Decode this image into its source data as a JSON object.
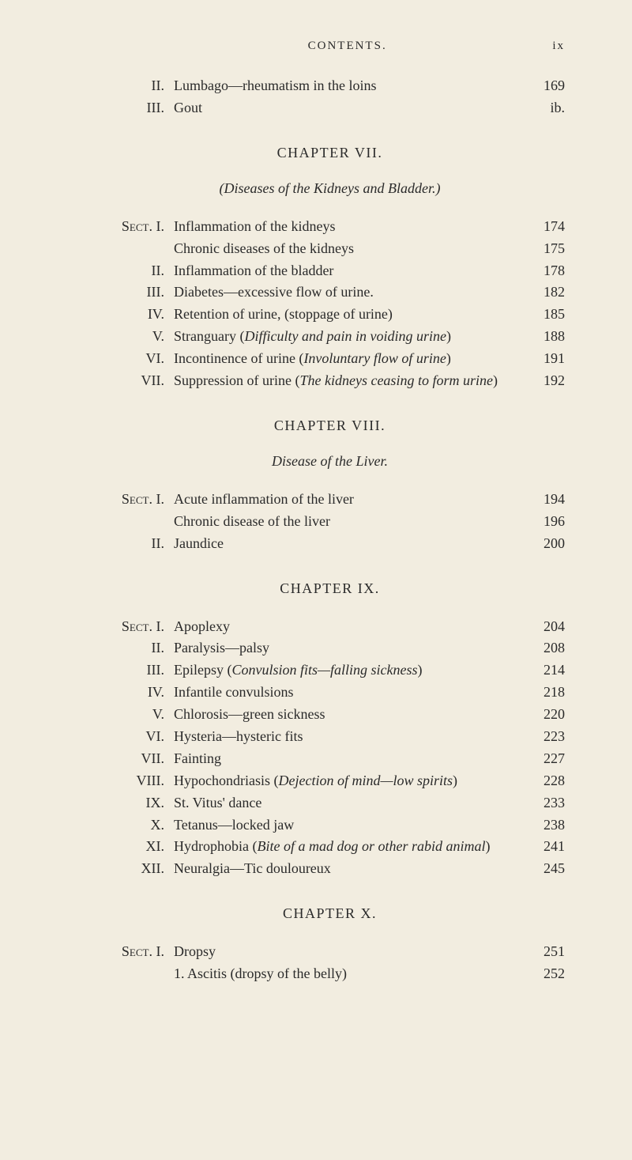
{
  "page_header": {
    "title": "CONTENTS.",
    "page_num": "ix"
  },
  "top_entries": [
    {
      "label": "II.",
      "title": "Lumbago—rheumatism in the loins",
      "page": "169"
    },
    {
      "label": "III.",
      "title": "Gout",
      "page": "ib."
    }
  ],
  "chapter7": {
    "heading": "CHAPTER VII.",
    "subtitle": "(Diseases of the Kidneys and Bladder.)",
    "entries": [
      {
        "label": "Sect. I.",
        "title": "Inflammation of the kidneys",
        "page": "174"
      },
      {
        "label": "",
        "title": "Chronic diseases of the kidneys",
        "page": "175",
        "sub": true
      },
      {
        "label": "II.",
        "title": "Inflammation of the bladder",
        "page": "178"
      },
      {
        "label": "III.",
        "title": "Diabetes—excessive flow of urine.",
        "page": "182"
      },
      {
        "label": "IV.",
        "title": "Retention of urine, (stoppage of urine)",
        "page": "185"
      },
      {
        "label": "V.",
        "title_html": "Stranguary (<i>Difficulty and pain in voiding urine</i>)",
        "page": "188"
      },
      {
        "label": "VI.",
        "title_html": "Incontinence of urine (<i>Involuntary flow of urine</i>)",
        "page": "191"
      },
      {
        "label": "VII.",
        "title_html": "Suppression of urine (<i>The kidneys ceasing to form urine</i>)",
        "page": "192",
        "wrap": true
      }
    ]
  },
  "chapter8": {
    "heading": "CHAPTER VIII.",
    "subtitle": "Disease of the Liver.",
    "entries": [
      {
        "label": "Sect. I.",
        "title": "Acute inflammation of the liver",
        "page": "194"
      },
      {
        "label": "",
        "title": "Chronic disease of the liver",
        "page": "196",
        "sub": true
      },
      {
        "label": "II.",
        "title": "Jaundice",
        "page": "200"
      }
    ]
  },
  "chapter9": {
    "heading": "CHAPTER IX.",
    "entries": [
      {
        "label": "Sect. I.",
        "title": "Apoplexy",
        "page": "204"
      },
      {
        "label": "II.",
        "title": "Paralysis—palsy",
        "page": "208"
      },
      {
        "label": "III.",
        "title_html": "Epilepsy (<i>Convulsion fits—falling sickness</i>)",
        "page": "214"
      },
      {
        "label": "IV.",
        "title": "Infantile convulsions",
        "page": "218"
      },
      {
        "label": "V.",
        "title": "Chlorosis—green sickness",
        "page": "220"
      },
      {
        "label": "VI.",
        "title": "Hysteria—hysteric fits",
        "page": "223"
      },
      {
        "label": "VII.",
        "title": "Fainting",
        "page": "227"
      },
      {
        "label": "VIII.",
        "title_html": "Hypochondriasis (<i>Dejection of mind—low spirits</i>)",
        "page": "228"
      },
      {
        "label": "IX.",
        "title": "St. Vitus' dance",
        "page": "233"
      },
      {
        "label": "X.",
        "title": "Tetanus—locked jaw",
        "page": "238"
      },
      {
        "label": "XI.",
        "title_html": "Hydrophobia (<i>Bite of a mad dog or other rabid animal</i>)",
        "page": "241",
        "wrap": true
      },
      {
        "label": "XII.",
        "title": "Neuralgia—Tic douloureux",
        "page": "245"
      }
    ]
  },
  "chapter10": {
    "heading": "CHAPTER X.",
    "entries": [
      {
        "label": "Sect. I.",
        "title": "Dropsy",
        "page": "251"
      },
      {
        "label": "",
        "title": "1. Ascitis (dropsy of the belly)",
        "page": "252",
        "sub": true
      }
    ]
  }
}
